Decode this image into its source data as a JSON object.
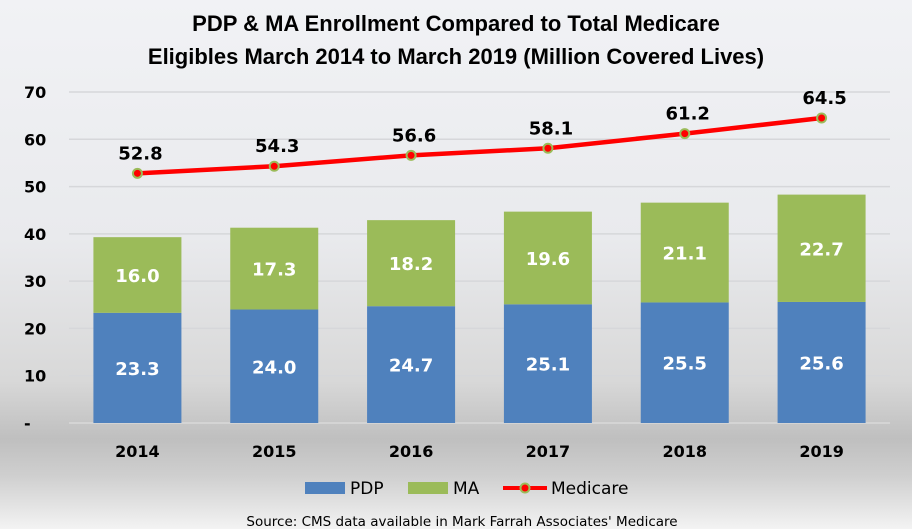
{
  "chart_data": {
    "type": "bar",
    "subtype": "stacked-bar-with-line",
    "title": [
      "PDP & MA Enrollment Compared to Total Medicare",
      "Eligibles March 2014 to March 2019 (Million Covered Lives)"
    ],
    "xlabel": "",
    "ylabel": "",
    "categories": [
      "2014",
      "2015",
      "2016",
      "2017",
      "2018",
      "2019"
    ],
    "ylim": [
      0,
      70
    ],
    "yticks": [
      0,
      10,
      20,
      30,
      40,
      50,
      60,
      70
    ],
    "ytick_labels": [
      "-",
      "10",
      "20",
      "30",
      "40",
      "50",
      "60",
      "70"
    ],
    "grid": true,
    "legend_position": "bottom",
    "series": [
      {
        "name": "PDP",
        "type": "bar",
        "color": "#4f81bd",
        "values": [
          23.3,
          24.0,
          24.7,
          25.1,
          25.5,
          25.6
        ],
        "labels": [
          "23.3",
          "24.0",
          "24.7",
          "25.1",
          "25.5",
          "25.6"
        ]
      },
      {
        "name": "MA",
        "type": "bar",
        "color": "#9bbb59",
        "values": [
          16.0,
          17.3,
          18.2,
          19.6,
          21.1,
          22.7
        ],
        "labels": [
          "16.0",
          "17.3",
          "18.2",
          "19.6",
          "21.1",
          "22.7"
        ]
      },
      {
        "name": "Medicare",
        "type": "line",
        "color": "#ff0000",
        "marker_color": "#ff0000",
        "marker_edge_color": "#9bbb59",
        "values": [
          52.8,
          54.3,
          56.6,
          58.1,
          61.2,
          64.5
        ],
        "labels": [
          "52.8",
          "54.3",
          "56.6",
          "58.1",
          "61.2",
          "64.5"
        ]
      }
    ],
    "source": "Source: CMS data available  in Mark Farrah Associates' Medicare"
  }
}
